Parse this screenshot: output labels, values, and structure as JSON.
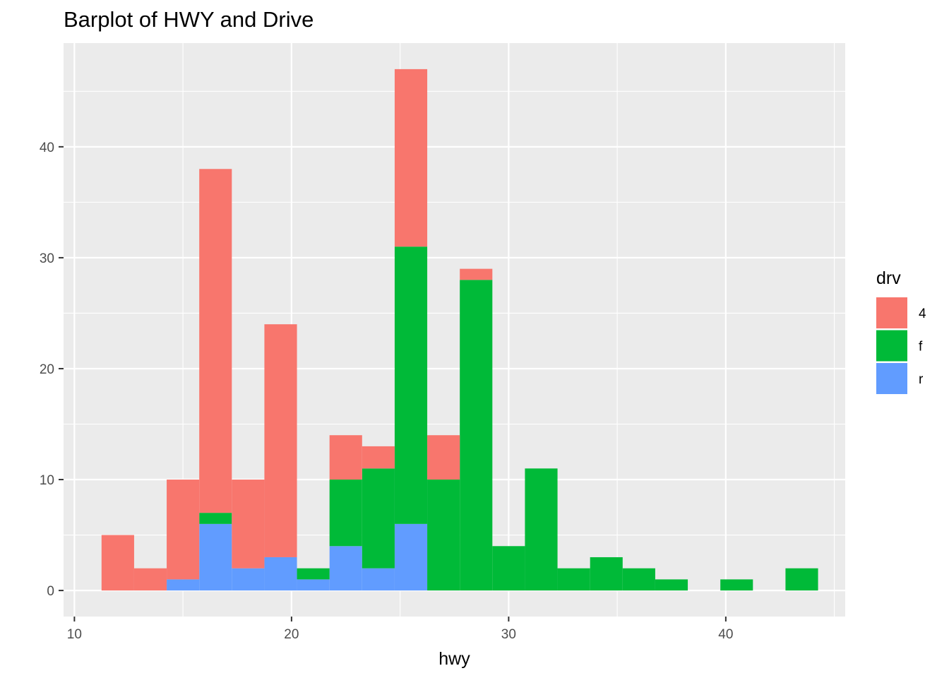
{
  "chart_data": {
    "type": "bar",
    "subtype": "stacked-histogram",
    "title": "Barplot of HWY and Drive",
    "xlabel": "hwy",
    "ylabel": "",
    "xlim": [
      9.5,
      45.5
    ],
    "ylim": [
      -2.35,
      49.35
    ],
    "xticks": [
      10,
      20,
      30,
      40
    ],
    "yticks": [
      0,
      10,
      20,
      30,
      40
    ],
    "bin_width": 1.5,
    "bin_centers": [
      12,
      13.5,
      15,
      16.5,
      18,
      19.5,
      21,
      22.5,
      24,
      25.5,
      27,
      28.5,
      30,
      31.5,
      33,
      34.5,
      36,
      37.5,
      39,
      40.5,
      42,
      43.5
    ],
    "grid": true,
    "legend": {
      "title": "drv",
      "position": "right"
    },
    "series": [
      {
        "name": "r",
        "color": "#619CFF",
        "values": [
          0,
          0,
          1,
          6,
          2,
          3,
          1,
          4,
          2,
          6,
          0,
          0,
          0,
          0,
          0,
          0,
          0,
          0,
          0,
          0,
          0,
          0
        ]
      },
      {
        "name": "f",
        "color": "#00BA38",
        "values": [
          0,
          0,
          0,
          1,
          0,
          0,
          1,
          6,
          9,
          25,
          10,
          28,
          4,
          11,
          2,
          3,
          2,
          1,
          0,
          1,
          0,
          2
        ]
      },
      {
        "name": "4",
        "color": "#F8766D",
        "values": [
          5,
          2,
          9,
          31,
          8,
          21,
          0,
          4,
          2,
          16,
          4,
          1,
          0,
          0,
          0,
          0,
          0,
          0,
          0,
          0,
          0,
          0
        ]
      }
    ],
    "legend_order": [
      "4",
      "f",
      "r"
    ],
    "colors": {
      "panel": "#EBEBEB",
      "grid": "#FFFFFF",
      "tick_text": "#4D4D4D",
      "tick_mark": "#333333"
    }
  }
}
